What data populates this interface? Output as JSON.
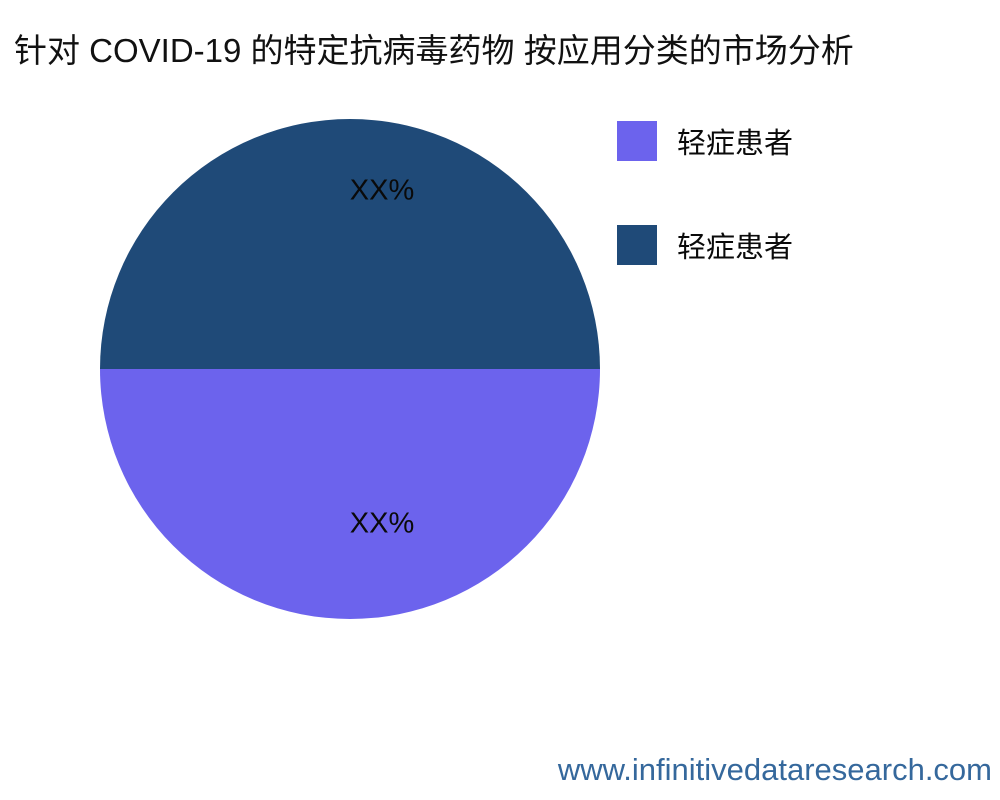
{
  "title": "针对 COVID-19 的特定抗病毒药物 按应用分类的市场分析",
  "chart_data": {
    "type": "pie",
    "title": "针对 COVID-19 的特定抗病毒药物 按应用分类的市场分析",
    "legend_position": "top-right",
    "slices": [
      {
        "label": "轻症患者",
        "value": 50,
        "display_value": "XX%",
        "color": "#6C63ED",
        "position": "bottom"
      },
      {
        "label": "轻症患者",
        "value": 50,
        "display_value": "XX%",
        "color": "#1F4A78",
        "position": "top"
      }
    ]
  },
  "legend": {
    "items": [
      {
        "label": "轻症患者",
        "color": "#6C63ED"
      },
      {
        "label": "轻症患者",
        "color": "#1F4A78"
      }
    ]
  },
  "footer": {
    "url": "www.infinitivedataresearch.com",
    "color": "#35689C"
  }
}
